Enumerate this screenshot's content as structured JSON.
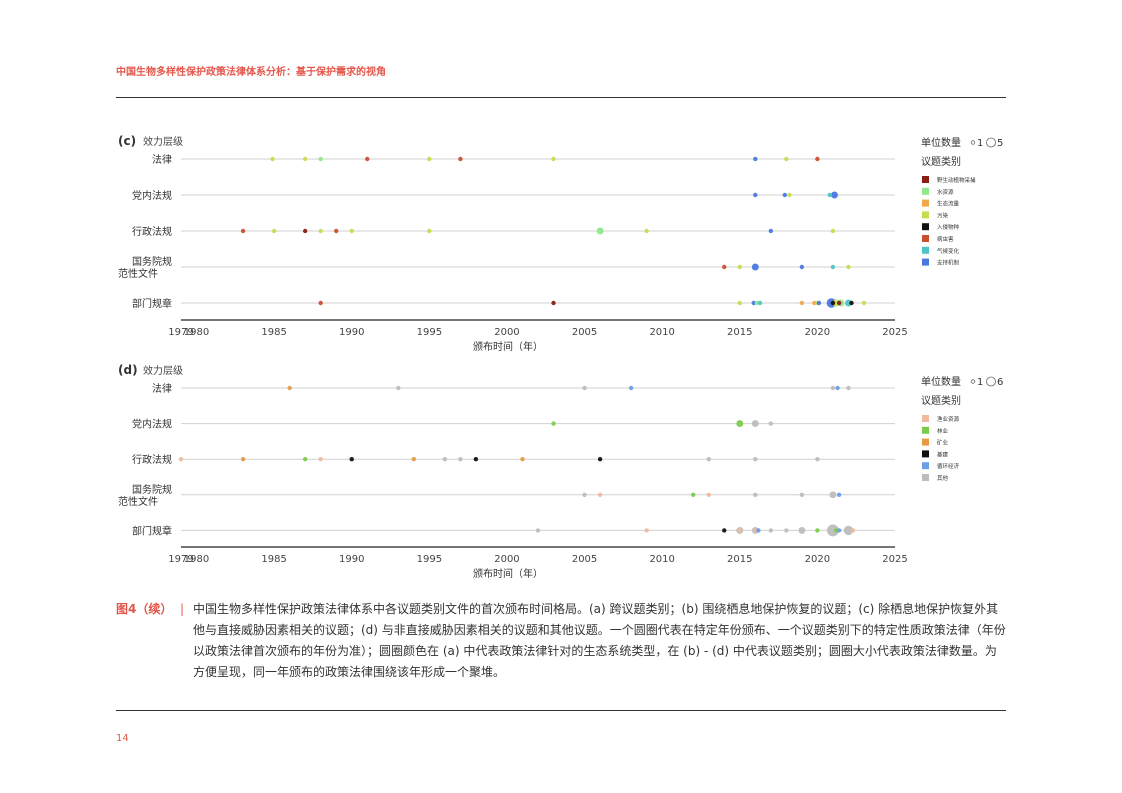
{
  "header": {
    "title": "中国生物多样性保护政策法律体系分析：基于保护需求的视角"
  },
  "page_number": "14",
  "caption": {
    "label": "图4（续）",
    "separator": "|",
    "text": "中国生物多样性保护政策法律体系中各议题类别文件的首次颁布时间格局。(a) 跨议题类别；(b) 围绕栖息地保护恢复的议题；(c) 除栖息地保护恢复外其他与直接威胁因素相关的议题；(d) 与非直接威胁因素相关的议题和其他议题。一个圆圈代表在特定年份颁布、一个议题类别下的特定性质政策法律（年份以政策法律首次颁布的年份为准）；圆圈颜色在 (a) 中代表政策法律针对的生态系统类型，在 (b) - (d) 中代表议题类别；圆圈大小代表政策法律数量。为方便呈现，同一年颁布的政策法律围绕该年形成一个聚堆。"
  },
  "chart_data": [
    {
      "panel": "(c)",
      "type": "scatter",
      "ylabel": "效力层级",
      "xlabel": "颁布时间（年）",
      "xlim": [
        1979,
        2025
      ],
      "xticks": [
        1979,
        1980,
        1985,
        1990,
        1995,
        2000,
        2005,
        2010,
        2015,
        2020,
        2025
      ],
      "rows": [
        "法律",
        "党内法规",
        "行政法规",
        "国务院规\n范性文件",
        "部门规章"
      ],
      "size_legend": {
        "title": "单位数量",
        "small": "1",
        "large": "5"
      },
      "color_legend_title": "议题类别",
      "categories": [
        {
          "name": "野生动植物采捕",
          "color": "#8b1e14"
        },
        {
          "name": "水资源",
          "color": "#8fe88a"
        },
        {
          "name": "生态流量",
          "color": "#f0a94a"
        },
        {
          "name": "污染",
          "color": "#c7dc4e"
        },
        {
          "name": "入侵物种",
          "color": "#111111"
        },
        {
          "name": "病虫害",
          "color": "#c9502e"
        },
        {
          "name": "气候变化",
          "color": "#4fc4c4"
        },
        {
          "name": "支持机制",
          "color": "#4a78e0"
        }
      ],
      "points": [
        {
          "row": 0,
          "x": 1984.9,
          "cat": 3,
          "n": 1
        },
        {
          "row": 0,
          "x": 1987.0,
          "cat": 3,
          "n": 1
        },
        {
          "row": 0,
          "x": 1988.0,
          "cat": 1,
          "n": 1
        },
        {
          "row": 0,
          "x": 1991.0,
          "cat": 5,
          "n": 1
        },
        {
          "row": 0,
          "x": 1995.0,
          "cat": 3,
          "n": 1
        },
        {
          "row": 0,
          "x": 1997.0,
          "cat": 5,
          "n": 1
        },
        {
          "row": 0,
          "x": 2003.0,
          "cat": 3,
          "n": 1
        },
        {
          "row": 0,
          "x": 2016.0,
          "cat": 7,
          "n": 1
        },
        {
          "row": 0,
          "x": 2018.0,
          "cat": 3,
          "n": 1
        },
        {
          "row": 0,
          "x": 2020.0,
          "cat": 5,
          "n": 1
        },
        {
          "row": 1,
          "x": 2016.0,
          "cat": 7,
          "n": 1
        },
        {
          "row": 1,
          "x": 2017.9,
          "cat": 7,
          "n": 1
        },
        {
          "row": 1,
          "x": 2018.2,
          "cat": 3,
          "n": 1
        },
        {
          "row": 1,
          "x": 2020.8,
          "cat": 6,
          "n": 1
        },
        {
          "row": 1,
          "x": 2021.1,
          "cat": 7,
          "n": 2
        },
        {
          "row": 2,
          "x": 1983.0,
          "cat": 5,
          "n": 1
        },
        {
          "row": 2,
          "x": 1985.0,
          "cat": 3,
          "n": 1
        },
        {
          "row": 2,
          "x": 1987.0,
          "cat": 0,
          "n": 1
        },
        {
          "row": 2,
          "x": 1988.0,
          "cat": 3,
          "n": 1
        },
        {
          "row": 2,
          "x": 1989.0,
          "cat": 5,
          "n": 1
        },
        {
          "row": 2,
          "x": 1990.0,
          "cat": 3,
          "n": 1
        },
        {
          "row": 2,
          "x": 1995.0,
          "cat": 3,
          "n": 1
        },
        {
          "row": 2,
          "x": 2006.0,
          "cat": 1,
          "n": 2
        },
        {
          "row": 2,
          "x": 2009.0,
          "cat": 3,
          "n": 1
        },
        {
          "row": 2,
          "x": 2017.0,
          "cat": 7,
          "n": 1
        },
        {
          "row": 2,
          "x": 2021.0,
          "cat": 3,
          "n": 1
        },
        {
          "row": 3,
          "x": 2014.0,
          "cat": 5,
          "n": 1
        },
        {
          "row": 3,
          "x": 2015.0,
          "cat": 3,
          "n": 1
        },
        {
          "row": 3,
          "x": 2016.0,
          "cat": 7,
          "n": 2
        },
        {
          "row": 3,
          "x": 2019.0,
          "cat": 7,
          "n": 1
        },
        {
          "row": 3,
          "x": 2021.0,
          "cat": 6,
          "n": 1
        },
        {
          "row": 3,
          "x": 2022.0,
          "cat": 3,
          "n": 1
        },
        {
          "row": 4,
          "x": 1988.0,
          "cat": 5,
          "n": 1
        },
        {
          "row": 4,
          "x": 2003.0,
          "cat": 0,
          "n": 1
        },
        {
          "row": 4,
          "x": 2015.0,
          "cat": 3,
          "n": 1
        },
        {
          "row": 4,
          "x": 2015.9,
          "cat": 7,
          "n": 1
        },
        {
          "row": 4,
          "x": 2016.1,
          "cat": 1,
          "n": 1
        },
        {
          "row": 4,
          "x": 2016.3,
          "cat": 6,
          "n": 1
        },
        {
          "row": 4,
          "x": 2019.0,
          "cat": 2,
          "n": 1
        },
        {
          "row": 4,
          "x": 2019.8,
          "cat": 2,
          "n": 1
        },
        {
          "row": 4,
          "x": 2020.0,
          "cat": 3,
          "n": 1
        },
        {
          "row": 4,
          "x": 2020.1,
          "cat": 7,
          "n": 1
        },
        {
          "row": 4,
          "x": 2020.9,
          "cat": 7,
          "n": 3
        },
        {
          "row": 4,
          "x": 2021.0,
          "cat": 4,
          "n": 1
        },
        {
          "row": 4,
          "x": 2021.2,
          "cat": 3,
          "n": 2
        },
        {
          "row": 4,
          "x": 2021.5,
          "cat": 1,
          "n": 2
        },
        {
          "row": 4,
          "x": 2021.4,
          "cat": 0,
          "n": 1
        },
        {
          "row": 4,
          "x": 2022.0,
          "cat": 6,
          "n": 2
        },
        {
          "row": 4,
          "x": 2022.2,
          "cat": 4,
          "n": 1
        },
        {
          "row": 4,
          "x": 2023.0,
          "cat": 3,
          "n": 1
        }
      ]
    },
    {
      "panel": "(d)",
      "type": "scatter",
      "ylabel": "效力层级",
      "xlabel": "颁布时间（年）",
      "xlim": [
        1979,
        2025
      ],
      "xticks": [
        1979,
        1980,
        1985,
        1990,
        1995,
        2000,
        2005,
        2010,
        2015,
        2020,
        2025
      ],
      "rows": [
        "法律",
        "党内法规",
        "行政法规",
        "国务院规\n范性文件",
        "部门规章"
      ],
      "size_legend": {
        "title": "单位数量",
        "small": "1",
        "large": "6"
      },
      "color_legend_title": "议题类别",
      "categories": [
        {
          "name": "渔业资源",
          "color": "#f0b9a0"
        },
        {
          "name": "林业",
          "color": "#7ccc4c"
        },
        {
          "name": "矿业",
          "color": "#e89a42"
        },
        {
          "name": "基建",
          "color": "#111111"
        },
        {
          "name": "循环经济",
          "color": "#6b9ee8"
        },
        {
          "name": "其他",
          "color": "#bdbdbd"
        }
      ],
      "points": [
        {
          "row": 0,
          "x": 1986.0,
          "cat": 2,
          "n": 1
        },
        {
          "row": 0,
          "x": 1993.0,
          "cat": 5,
          "n": 1
        },
        {
          "row": 0,
          "x": 2005.0,
          "cat": 5,
          "n": 1
        },
        {
          "row": 0,
          "x": 2008.0,
          "cat": 4,
          "n": 1
        },
        {
          "row": 0,
          "x": 2021.0,
          "cat": 5,
          "n": 1
        },
        {
          "row": 0,
          "x": 2021.3,
          "cat": 4,
          "n": 1
        },
        {
          "row": 0,
          "x": 2022.0,
          "cat": 5,
          "n": 1
        },
        {
          "row": 1,
          "x": 2003.0,
          "cat": 1,
          "n": 1
        },
        {
          "row": 1,
          "x": 2015.0,
          "cat": 1,
          "n": 2
        },
        {
          "row": 1,
          "x": 2016.0,
          "cat": 5,
          "n": 2
        },
        {
          "row": 1,
          "x": 2017.0,
          "cat": 5,
          "n": 1
        },
        {
          "row": 2,
          "x": 1979.0,
          "cat": 0,
          "n": 1
        },
        {
          "row": 2,
          "x": 1983.0,
          "cat": 2,
          "n": 1
        },
        {
          "row": 2,
          "x": 1987.0,
          "cat": 1,
          "n": 1
        },
        {
          "row": 2,
          "x": 1988.0,
          "cat": 0,
          "n": 1
        },
        {
          "row": 2,
          "x": 1990.0,
          "cat": 3,
          "n": 1
        },
        {
          "row": 2,
          "x": 1994.0,
          "cat": 2,
          "n": 1
        },
        {
          "row": 2,
          "x": 1996.0,
          "cat": 5,
          "n": 1
        },
        {
          "row": 2,
          "x": 1997.0,
          "cat": 5,
          "n": 1
        },
        {
          "row": 2,
          "x": 1998.0,
          "cat": 3,
          "n": 1
        },
        {
          "row": 2,
          "x": 2001.0,
          "cat": 2,
          "n": 1
        },
        {
          "row": 2,
          "x": 2006.0,
          "cat": 3,
          "n": 1
        },
        {
          "row": 2,
          "x": 2013.0,
          "cat": 5,
          "n": 1
        },
        {
          "row": 2,
          "x": 2016.0,
          "cat": 5,
          "n": 1
        },
        {
          "row": 2,
          "x": 2020.0,
          "cat": 5,
          "n": 1
        },
        {
          "row": 3,
          "x": 2005.0,
          "cat": 5,
          "n": 1
        },
        {
          "row": 3,
          "x": 2006.0,
          "cat": 0,
          "n": 1
        },
        {
          "row": 3,
          "x": 2012.0,
          "cat": 1,
          "n": 1
        },
        {
          "row": 3,
          "x": 2013.0,
          "cat": 0,
          "n": 1
        },
        {
          "row": 3,
          "x": 2016.0,
          "cat": 5,
          "n": 1
        },
        {
          "row": 3,
          "x": 2019.0,
          "cat": 5,
          "n": 1
        },
        {
          "row": 3,
          "x": 2021.0,
          "cat": 5,
          "n": 2
        },
        {
          "row": 3,
          "x": 2021.4,
          "cat": 4,
          "n": 1
        },
        {
          "row": 4,
          "x": 2002.0,
          "cat": 5,
          "n": 1
        },
        {
          "row": 4,
          "x": 2009.0,
          "cat": 0,
          "n": 1
        },
        {
          "row": 4,
          "x": 2014.0,
          "cat": 3,
          "n": 1
        },
        {
          "row": 4,
          "x": 2015.0,
          "cat": 5,
          "n": 2
        },
        {
          "row": 4,
          "x": 2015.0,
          "cat": 0,
          "n": 1
        },
        {
          "row": 4,
          "x": 2016.0,
          "cat": 5,
          "n": 2
        },
        {
          "row": 4,
          "x": 2016.0,
          "cat": 0,
          "n": 1
        },
        {
          "row": 4,
          "x": 2016.2,
          "cat": 4,
          "n": 1
        },
        {
          "row": 4,
          "x": 2017.0,
          "cat": 5,
          "n": 1
        },
        {
          "row": 4,
          "x": 2018.0,
          "cat": 5,
          "n": 1
        },
        {
          "row": 4,
          "x": 2019.0,
          "cat": 5,
          "n": 2
        },
        {
          "row": 4,
          "x": 2020.0,
          "cat": 1,
          "n": 1
        },
        {
          "row": 4,
          "x": 2021.0,
          "cat": 5,
          "n": 4
        },
        {
          "row": 4,
          "x": 2021.2,
          "cat": 1,
          "n": 1
        },
        {
          "row": 4,
          "x": 2021.4,
          "cat": 4,
          "n": 1
        },
        {
          "row": 4,
          "x": 2022.0,
          "cat": 5,
          "n": 3
        },
        {
          "row": 4,
          "x": 2022.3,
          "cat": 0,
          "n": 1
        }
      ]
    }
  ]
}
